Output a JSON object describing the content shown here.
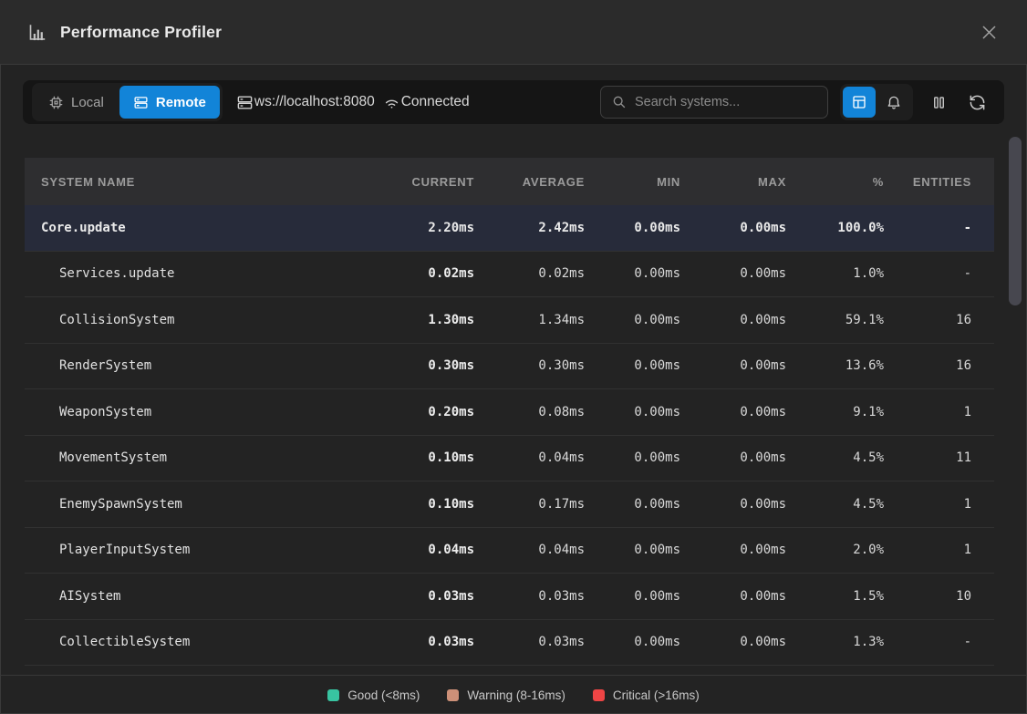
{
  "window": {
    "title": "Performance Profiler"
  },
  "toolbar": {
    "accent_color": "#1284d8",
    "modes": [
      {
        "label": "Local",
        "icon": "cpu-icon",
        "active": false
      },
      {
        "label": "Remote",
        "icon": "server-icon",
        "active": true
      }
    ],
    "connection_url": "ws://localhost:8080",
    "connection_status": "Connected",
    "search_placeholder": "Search systems..."
  },
  "table": {
    "columns": [
      "SYSTEM NAME",
      "CURRENT",
      "AVERAGE",
      "MIN",
      "MAX",
      "%",
      "ENTITIES"
    ],
    "rows": [
      {
        "name": "Core.update",
        "depth": 0,
        "selected": true,
        "current": "2.20ms",
        "average": "2.42ms",
        "min": "0.00ms",
        "max": "0.00ms",
        "percent": "100.0%",
        "entities": "-"
      },
      {
        "name": "Services.update",
        "depth": 1,
        "selected": false,
        "current": "0.02ms",
        "average": "0.02ms",
        "min": "0.00ms",
        "max": "0.00ms",
        "percent": "1.0%",
        "entities": "-"
      },
      {
        "name": "CollisionSystem",
        "depth": 1,
        "selected": false,
        "current": "1.30ms",
        "average": "1.34ms",
        "min": "0.00ms",
        "max": "0.00ms",
        "percent": "59.1%",
        "entities": "16"
      },
      {
        "name": "RenderSystem",
        "depth": 1,
        "selected": false,
        "current": "0.30ms",
        "average": "0.30ms",
        "min": "0.00ms",
        "max": "0.00ms",
        "percent": "13.6%",
        "entities": "16"
      },
      {
        "name": "WeaponSystem",
        "depth": 1,
        "selected": false,
        "current": "0.20ms",
        "average": "0.08ms",
        "min": "0.00ms",
        "max": "0.00ms",
        "percent": "9.1%",
        "entities": "1"
      },
      {
        "name": "MovementSystem",
        "depth": 1,
        "selected": false,
        "current": "0.10ms",
        "average": "0.04ms",
        "min": "0.00ms",
        "max": "0.00ms",
        "percent": "4.5%",
        "entities": "11"
      },
      {
        "name": "EnemySpawnSystem",
        "depth": 1,
        "selected": false,
        "current": "0.10ms",
        "average": "0.17ms",
        "min": "0.00ms",
        "max": "0.00ms",
        "percent": "4.5%",
        "entities": "1"
      },
      {
        "name": "PlayerInputSystem",
        "depth": 1,
        "selected": false,
        "current": "0.04ms",
        "average": "0.04ms",
        "min": "0.00ms",
        "max": "0.00ms",
        "percent": "2.0%",
        "entities": "1"
      },
      {
        "name": "AISystem",
        "depth": 1,
        "selected": false,
        "current": "0.03ms",
        "average": "0.03ms",
        "min": "0.00ms",
        "max": "0.00ms",
        "percent": "1.5%",
        "entities": "10"
      },
      {
        "name": "CollectibleSystem",
        "depth": 1,
        "selected": false,
        "current": "0.03ms",
        "average": "0.03ms",
        "min": "0.00ms",
        "max": "0.00ms",
        "percent": "1.3%",
        "entities": "-"
      }
    ]
  },
  "legend": [
    {
      "label": "Good (<8ms)",
      "color": "#38c4a1"
    },
    {
      "label": "Warning (8-16ms)",
      "color": "#cd9078"
    },
    {
      "label": "Critical (>16ms)",
      "color": "#ee4545"
    }
  ]
}
